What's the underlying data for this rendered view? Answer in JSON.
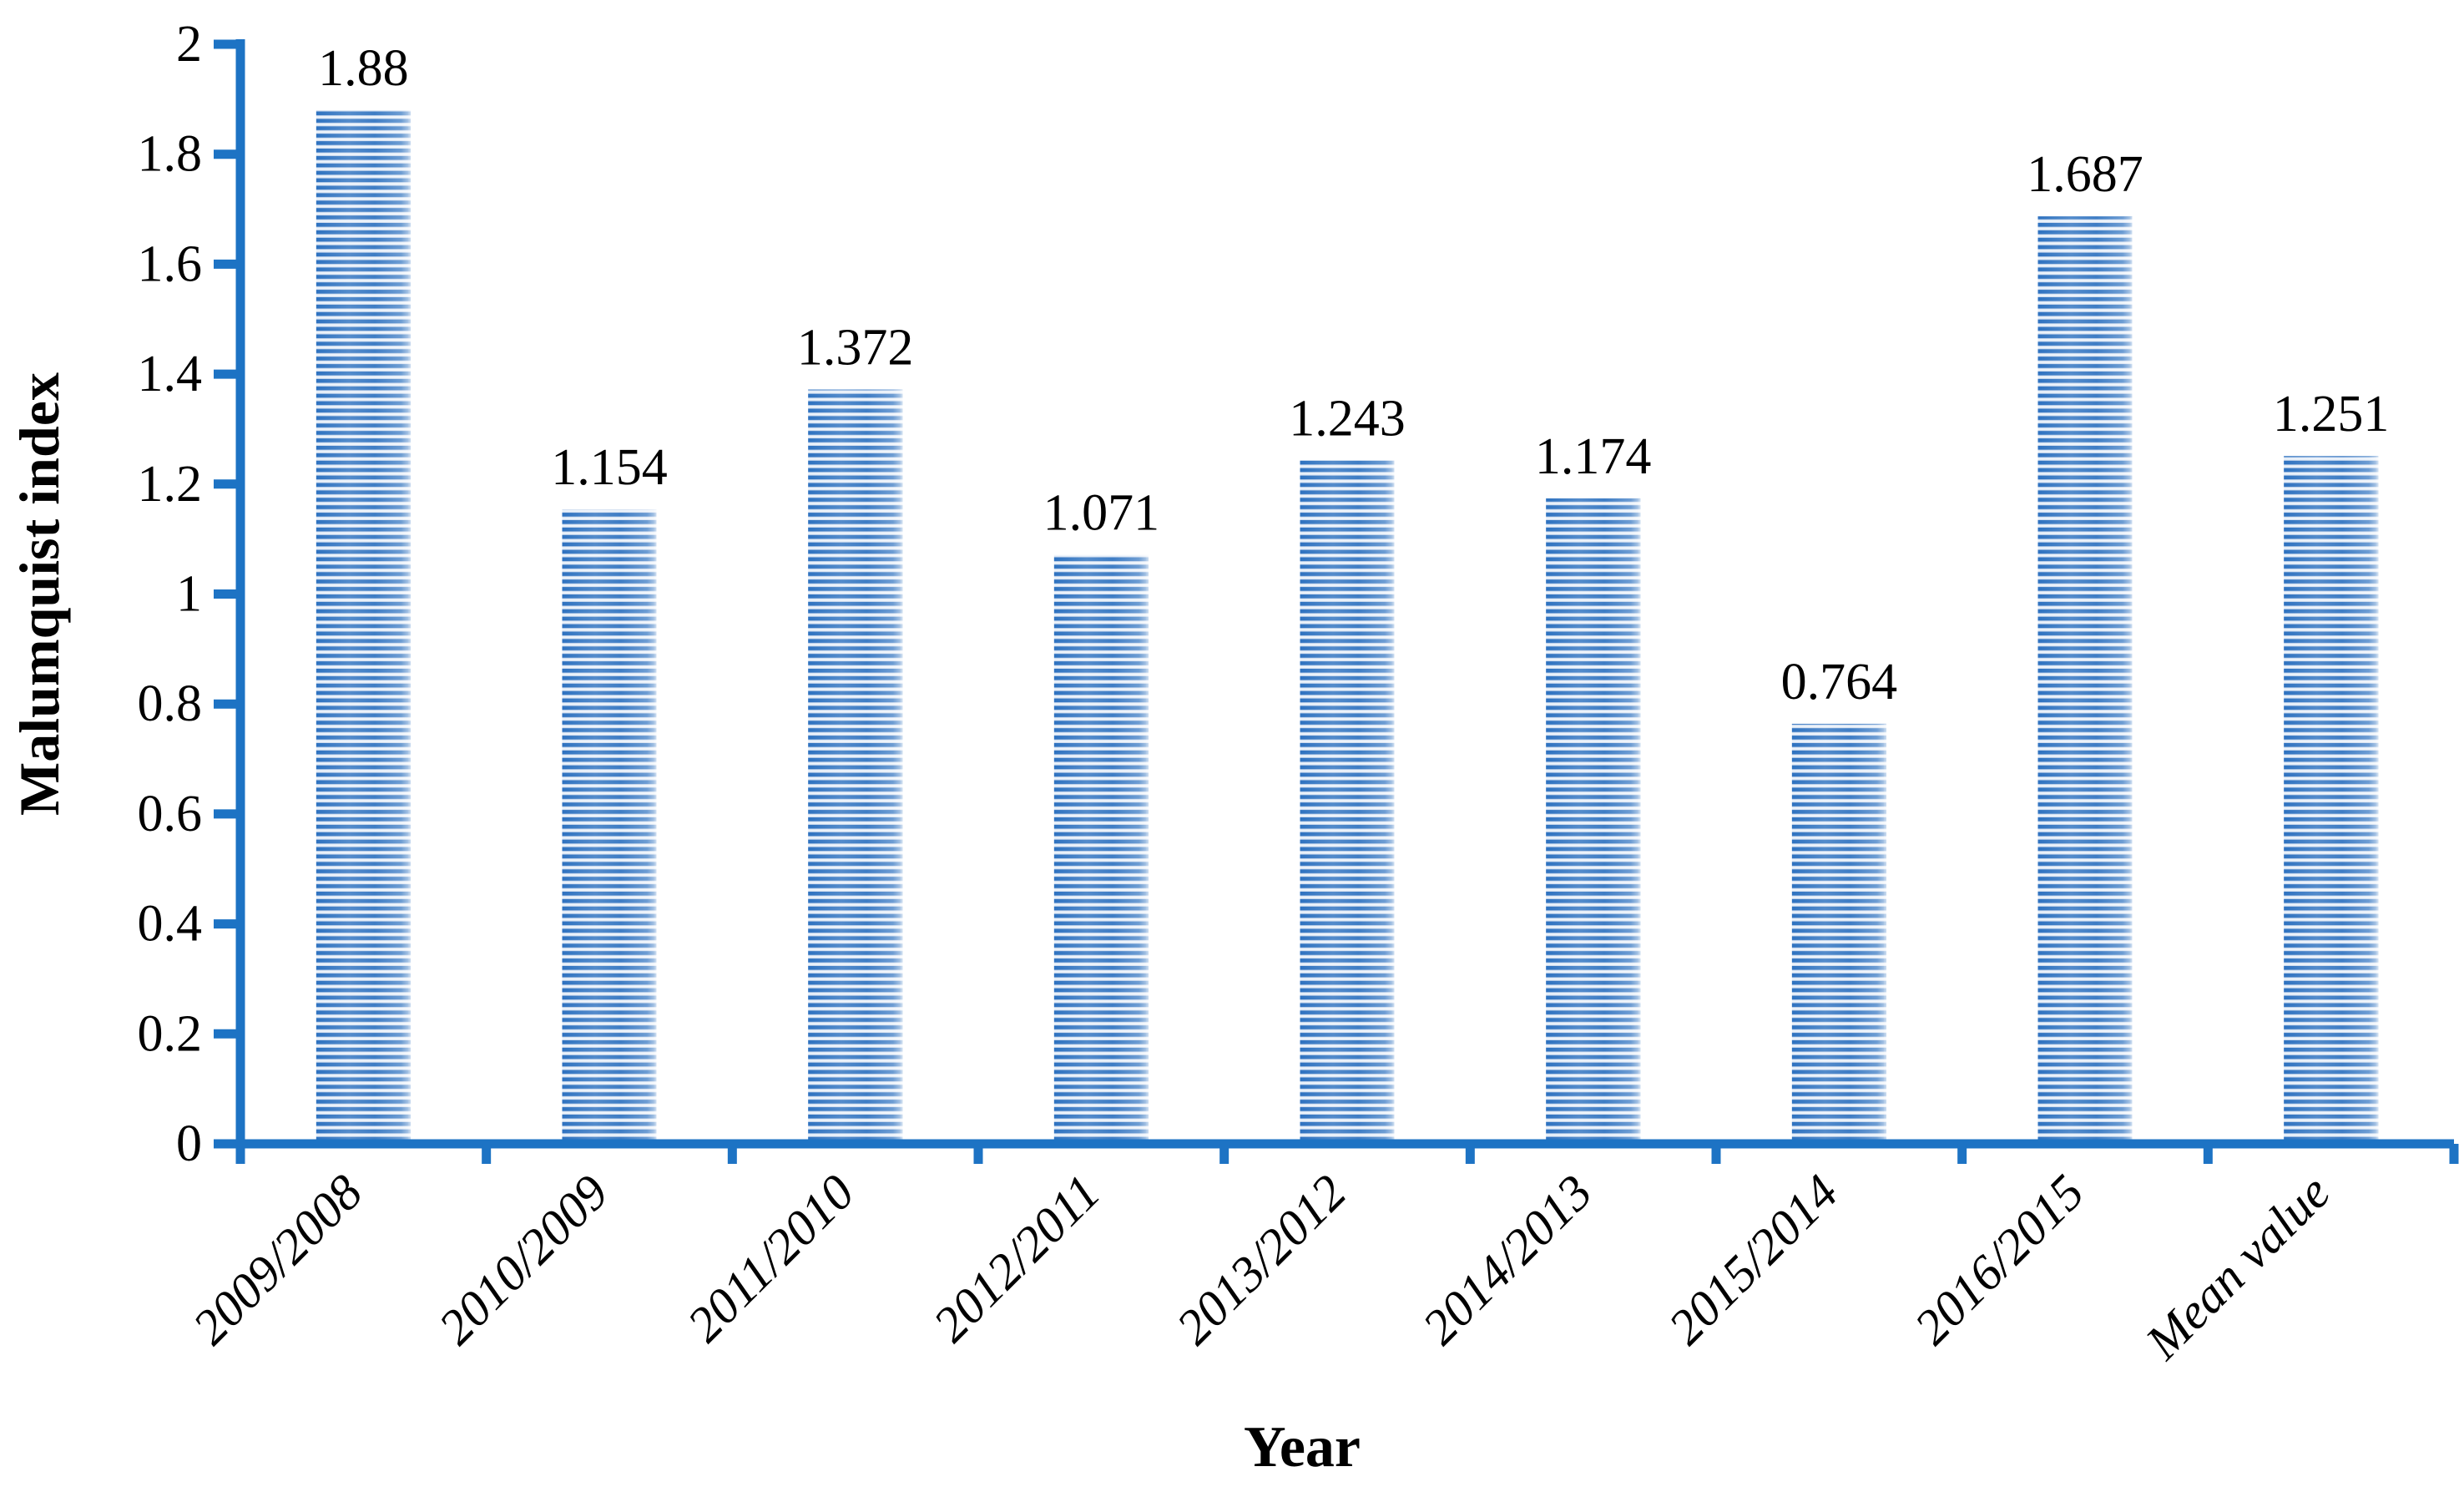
{
  "figure": {
    "background": "#ffffff"
  },
  "chart_data": {
    "type": "bar",
    "title": "",
    "xlabel": "Year",
    "ylabel": "Malumquist index",
    "categories": [
      "2009/2008",
      "2010/2009",
      "2011/2010",
      "2012/2011",
      "2013/2012",
      "2014/2013",
      "2015/2014",
      "2016/2015",
      "Mean value"
    ],
    "values": [
      1.88,
      1.154,
      1.372,
      1.071,
      1.243,
      1.174,
      0.764,
      1.687,
      1.251
    ],
    "data_labels": [
      "1.88",
      "1.154",
      "1.372",
      "1.071",
      "1.243",
      "1.174",
      "0.764",
      "1.687",
      "1.251"
    ],
    "ylim": [
      0,
      2
    ],
    "ytick_step": 0.2,
    "ytick_labels": [
      "0",
      "0.2",
      "0.4",
      "0.6",
      "0.8",
      "1",
      "1.2",
      "1.4",
      "1.6",
      "1.8",
      "2"
    ],
    "grid": false,
    "legend": null,
    "bar_orientation": "vertical",
    "bar_fill_pattern": "horizontal-stripes",
    "colors": {
      "axis": "#1d73c4",
      "stripe_dark": "#2e72c0",
      "stripe_light": "#ccdaee",
      "stripe_highlight": "#ecf3fb",
      "label_text": "#000000",
      "background": "#ffffff"
    }
  }
}
